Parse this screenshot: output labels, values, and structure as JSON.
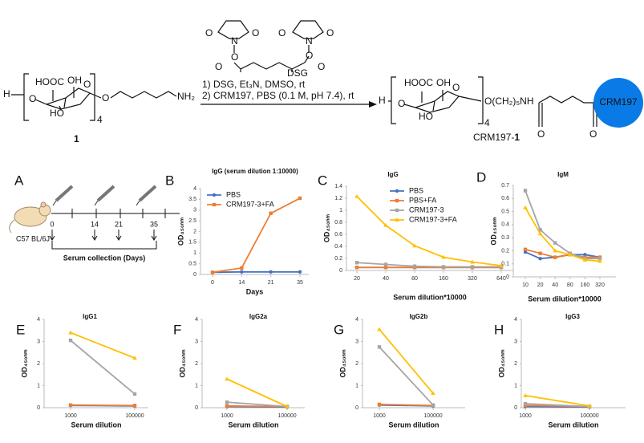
{
  "scheme": {
    "reactant": {
      "h": "H",
      "hooc": "HOOC",
      "oh": "OH",
      "ho": "HO",
      "o_left": "O",
      "o_ring": "O",
      "o_chain": "O",
      "nh2": "NH₂",
      "repeat": "4",
      "number": "1"
    },
    "reagent": {
      "o1": "O",
      "n1": "N",
      "o2": "O",
      "o3": "O",
      "n2": "N",
      "o4": "O",
      "o5": "O",
      "o6": "O",
      "o7": "O",
      "o8": "O",
      "name": "DSG"
    },
    "conditions": [
      "DSG",
      "1) DSG, Et₃N, DMSO, rt",
      "2) CRM197, PBS (0.1 M, pH 7.4), rt"
    ],
    "product": {
      "h": "H",
      "hooc": "HOOC",
      "oh": "OH",
      "ho": "HO",
      "o_left": "O",
      "o_ring": "O",
      "linker": "O(CH₂)₅NH",
      "o_amide": "O",
      "o_ketone": "O",
      "repeat": "4",
      "protein": "CRM197",
      "name": "CRM197-",
      "number": "1"
    }
  },
  "timeline": {
    "panel": "A",
    "strain": "C57 BL/6J",
    "days": [
      0,
      14,
      21,
      35
    ],
    "caption": "Serum collection (Days)"
  },
  "chart_data": [
    {
      "panel": "B",
      "type": "line",
      "title": "IgG (serum dilution 1:10000)",
      "xlabel": "Days",
      "ylabel": "OD₄₅₀ₙₘ",
      "categories": [
        "0",
        "14",
        "21",
        "35"
      ],
      "ylim": [
        0,
        4
      ],
      "yticks": [
        0,
        0.5,
        1,
        1.5,
        2,
        2.5,
        3,
        3.5,
        4
      ],
      "legend": true,
      "series": [
        {
          "name": "PBS",
          "color": "#4472c4",
          "marker": "circle",
          "values": [
            0.1,
            0.12,
            0.12,
            0.12
          ]
        },
        {
          "name": "CRM197-3+FA",
          "color": "#ed7d31",
          "marker": "square",
          "values": [
            0.1,
            0.3,
            2.85,
            3.55
          ]
        }
      ]
    },
    {
      "panel": "C",
      "type": "line",
      "title": "IgG",
      "xlabel": "Serum dilution*10000",
      "ylabel": "OD₄₅₀ₙₘ",
      "categories": [
        "20",
        "40",
        "80",
        "160",
        "320",
        "640"
      ],
      "ylim": [
        0,
        1.4
      ],
      "yticks": [
        0,
        0.2,
        0.4,
        0.6,
        0.8,
        1,
        1.2,
        1.4
      ],
      "legend": true,
      "series": [
        {
          "name": "PBS",
          "color": "#4472c4",
          "marker": "circle",
          "values": [
            0.05,
            0.05,
            0.05,
            0.05,
            0.05,
            0.05
          ]
        },
        {
          "name": "PBS+FA",
          "color": "#ed7d31",
          "marker": "square",
          "values": [
            0.05,
            0.05,
            0.05,
            0.05,
            0.05,
            0.05
          ]
        },
        {
          "name": "CRM197-3",
          "color": "#a5a5a5",
          "marker": "square",
          "values": [
            0.13,
            0.1,
            0.07,
            0.06,
            0.06,
            0.06
          ]
        },
        {
          "name": "CRM197-3+FA",
          "color": "#ffc000",
          "marker": "triangle",
          "values": [
            1.23,
            0.75,
            0.41,
            0.22,
            0.14,
            0.08
          ]
        }
      ]
    },
    {
      "panel": "D",
      "type": "line",
      "title": "IgM",
      "xlabel": "Serum dilution*10000",
      "ylabel": "OD₄₅₀ₙₘ",
      "categories": [
        "10",
        "20",
        "40",
        "80",
        "160",
        "320"
      ],
      "ylim": [
        0,
        0.7
      ],
      "yticks": [
        0,
        0.1,
        0.2,
        0.3,
        0.4,
        0.5,
        0.6,
        0.7
      ],
      "legend": false,
      "series": [
        {
          "color": "#4472c4",
          "marker": "circle",
          "values": [
            0.19,
            0.14,
            0.15,
            0.17,
            0.17,
            0.15
          ]
        },
        {
          "color": "#ed7d31",
          "marker": "square",
          "values": [
            0.21,
            0.18,
            0.15,
            0.17,
            0.15,
            0.15
          ]
        },
        {
          "color": "#a5a5a5",
          "marker": "square",
          "values": [
            0.66,
            0.36,
            0.26,
            0.18,
            0.14,
            0.14
          ]
        },
        {
          "color": "#ffc000",
          "marker": "triangle",
          "values": [
            0.53,
            0.33,
            0.2,
            0.17,
            0.13,
            0.12
          ]
        }
      ]
    },
    {
      "panel": "E",
      "type": "line",
      "title": "IgG1",
      "xlabel": "Serum dilution",
      "ylabel": "OD₄₅₀ₙₘ",
      "categories": [
        "1000",
        "100000"
      ],
      "ylim": [
        0,
        4
      ],
      "yticks": [
        0,
        1,
        2,
        3,
        4
      ],
      "legend": false,
      "series": [
        {
          "color": "#4472c4",
          "marker": "circle",
          "values": [
            0.1,
            0.08
          ]
        },
        {
          "color": "#ed7d31",
          "marker": "square",
          "values": [
            0.12,
            0.1
          ]
        },
        {
          "color": "#a5a5a5",
          "marker": "square",
          "values": [
            3.05,
            0.62
          ]
        },
        {
          "color": "#ffc000",
          "marker": "triangle",
          "values": [
            3.4,
            2.25
          ]
        }
      ]
    },
    {
      "panel": "F",
      "type": "line",
      "title": "IgG2a",
      "xlabel": "Serum dilution",
      "ylabel": "OD₄₅₀ₙₘ",
      "categories": [
        "1000",
        "100000"
      ],
      "ylim": [
        0,
        4
      ],
      "yticks": [
        0,
        1,
        2,
        3,
        4
      ],
      "legend": false,
      "series": [
        {
          "color": "#4472c4",
          "marker": "circle",
          "values": [
            0.05,
            0.03
          ]
        },
        {
          "color": "#ed7d31",
          "marker": "square",
          "values": [
            0.08,
            0.05
          ]
        },
        {
          "color": "#a5a5a5",
          "marker": "square",
          "values": [
            0.25,
            0.05
          ]
        },
        {
          "color": "#ffc000",
          "marker": "triangle",
          "values": [
            1.3,
            0.05
          ]
        }
      ]
    },
    {
      "panel": "G",
      "type": "line",
      "title": "IgG2b",
      "xlabel": "Serum dilution",
      "ylabel": "OD₄₅₀ₙₘ",
      "categories": [
        "1000",
        "100000"
      ],
      "ylim": [
        0,
        4
      ],
      "yticks": [
        0,
        1,
        2,
        3,
        4
      ],
      "legend": false,
      "series": [
        {
          "color": "#4472c4",
          "marker": "circle",
          "values": [
            0.12,
            0.08
          ]
        },
        {
          "color": "#ed7d31",
          "marker": "square",
          "values": [
            0.15,
            0.1
          ]
        },
        {
          "color": "#a5a5a5",
          "marker": "square",
          "values": [
            2.75,
            0.12
          ]
        },
        {
          "color": "#ffc000",
          "marker": "triangle",
          "values": [
            3.55,
            0.65
          ]
        }
      ]
    },
    {
      "panel": "H",
      "type": "line",
      "title": "IgG3",
      "xlabel": "Serum dilution",
      "ylabel": "OD₄₅₀ₙₘ",
      "categories": [
        "1000",
        "100000"
      ],
      "ylim": [
        0,
        4
      ],
      "yticks": [
        0,
        1,
        2,
        3,
        4
      ],
      "legend": false,
      "series": [
        {
          "color": "#4472c4",
          "marker": "circle",
          "values": [
            0.05,
            0.03
          ]
        },
        {
          "color": "#ed7d31",
          "marker": "square",
          "values": [
            0.1,
            0.05
          ]
        },
        {
          "color": "#a5a5a5",
          "marker": "square",
          "values": [
            0.18,
            0.05
          ]
        },
        {
          "color": "#ffc000",
          "marker": "triangle",
          "values": [
            0.55,
            0.08
          ]
        }
      ]
    }
  ]
}
